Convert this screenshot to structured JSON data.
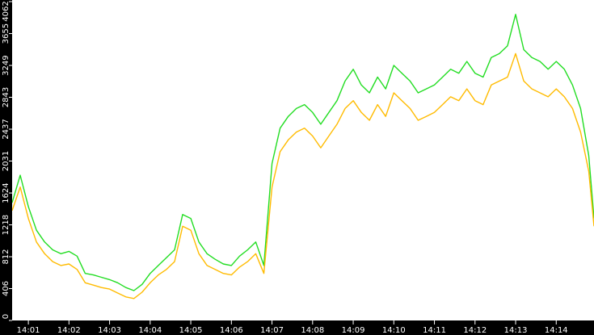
{
  "chart_data": {
    "type": "line",
    "title": "",
    "xlabel": "",
    "ylabel": "",
    "ylim": [
      0,
      4062
    ],
    "xlim_minutes": [
      0.6,
      14.93
    ],
    "grid": false,
    "legend": "none",
    "background": "#ffffff",
    "axis_band_color": "#000000",
    "y_ticks": [
      0,
      406,
      812,
      1218,
      1624,
      2031,
      2437,
      2843,
      3249,
      3655,
      4062
    ],
    "x_ticks": [
      {
        "label": "14:01",
        "minute": 1
      },
      {
        "label": "14:02",
        "minute": 2
      },
      {
        "label": "14:03",
        "minute": 3
      },
      {
        "label": "14:04",
        "minute": 4
      },
      {
        "label": "14:05",
        "minute": 5
      },
      {
        "label": "14:06",
        "minute": 6
      },
      {
        "label": "14:07",
        "minute": 7
      },
      {
        "label": "14:08",
        "minute": 8
      },
      {
        "label": "14:09",
        "minute": 9
      },
      {
        "label": "14:10",
        "minute": 10
      },
      {
        "label": "14:11",
        "minute": 11
      },
      {
        "label": "14:12",
        "minute": 12
      },
      {
        "label": "14:13",
        "minute": 13
      },
      {
        "label": "14:14",
        "minute": 14
      }
    ],
    "series": [
      {
        "color": "#22dd22",
        "x_minutes": [
          0.6,
          0.8,
          1.0,
          1.2,
          1.4,
          1.6,
          1.8,
          2.0,
          2.2,
          2.4,
          2.6,
          2.8,
          3.0,
          3.2,
          3.4,
          3.6,
          3.8,
          4.0,
          4.2,
          4.4,
          4.6,
          4.8,
          5.0,
          5.2,
          5.4,
          5.6,
          5.8,
          6.0,
          6.2,
          6.4,
          6.6,
          6.8,
          7.0,
          7.2,
          7.4,
          7.6,
          7.8,
          8.0,
          8.2,
          8.4,
          8.6,
          8.8,
          9.0,
          9.2,
          9.4,
          9.6,
          9.8,
          10.0,
          10.2,
          10.4,
          10.6,
          10.8,
          11.0,
          11.2,
          11.4,
          11.6,
          11.8,
          12.0,
          12.2,
          12.4,
          12.6,
          12.8,
          13.0,
          13.2,
          13.4,
          13.6,
          13.8,
          14.0,
          14.2,
          14.4,
          14.6,
          14.8,
          14.93
        ],
        "values": [
          1500,
          1850,
          1450,
          1150,
          1000,
          900,
          850,
          880,
          820,
          600,
          580,
          550,
          520,
          480,
          420,
          380,
          460,
          600,
          700,
          800,
          900,
          1350,
          1300,
          1000,
          850,
          780,
          720,
          700,
          820,
          900,
          1000,
          700,
          2000,
          2450,
          2600,
          2700,
          2750,
          2650,
          2500,
          2650,
          2800,
          3050,
          3200,
          3000,
          2900,
          3100,
          2950,
          3250,
          3150,
          3050,
          2900,
          2950,
          3000,
          3100,
          3200,
          3150,
          3300,
          3150,
          3100,
          3350,
          3400,
          3500,
          3900,
          3450,
          3350,
          3300,
          3200,
          3300,
          3200,
          3000,
          2700,
          2100,
          1300
        ]
      },
      {
        "color": "#ffbb00",
        "x_minutes": [
          0.6,
          0.8,
          1.0,
          1.2,
          1.4,
          1.6,
          1.8,
          2.0,
          2.2,
          2.4,
          2.6,
          2.8,
          3.0,
          3.2,
          3.4,
          3.6,
          3.8,
          4.0,
          4.2,
          4.4,
          4.6,
          4.8,
          5.0,
          5.2,
          5.4,
          5.6,
          5.8,
          6.0,
          6.2,
          6.4,
          6.6,
          6.8,
          7.0,
          7.2,
          7.4,
          7.6,
          7.8,
          8.0,
          8.2,
          8.4,
          8.6,
          8.8,
          9.0,
          9.2,
          9.4,
          9.6,
          9.8,
          10.0,
          10.2,
          10.4,
          10.6,
          10.8,
          11.0,
          11.2,
          11.4,
          11.6,
          11.8,
          12.0,
          12.2,
          12.4,
          12.6,
          12.8,
          13.0,
          13.2,
          13.4,
          13.6,
          13.8,
          14.0,
          14.2,
          14.4,
          14.6,
          14.8,
          14.93
        ],
        "values": [
          1400,
          1700,
          1300,
          1000,
          850,
          750,
          700,
          720,
          650,
          480,
          450,
          420,
          400,
          350,
          300,
          280,
          360,
          480,
          580,
          650,
          750,
          1200,
          1150,
          850,
          700,
          650,
          600,
          580,
          680,
          750,
          850,
          600,
          1700,
          2150,
          2300,
          2400,
          2450,
          2350,
          2200,
          2350,
          2500,
          2700,
          2800,
          2650,
          2550,
          2750,
          2600,
          2900,
          2800,
          2700,
          2550,
          2600,
          2650,
          2750,
          2850,
          2800,
          2950,
          2800,
          2750,
          3000,
          3050,
          3100,
          3400,
          3050,
          2950,
          2900,
          2850,
          2950,
          2850,
          2700,
          2400,
          1900,
          1200
        ]
      }
    ]
  }
}
